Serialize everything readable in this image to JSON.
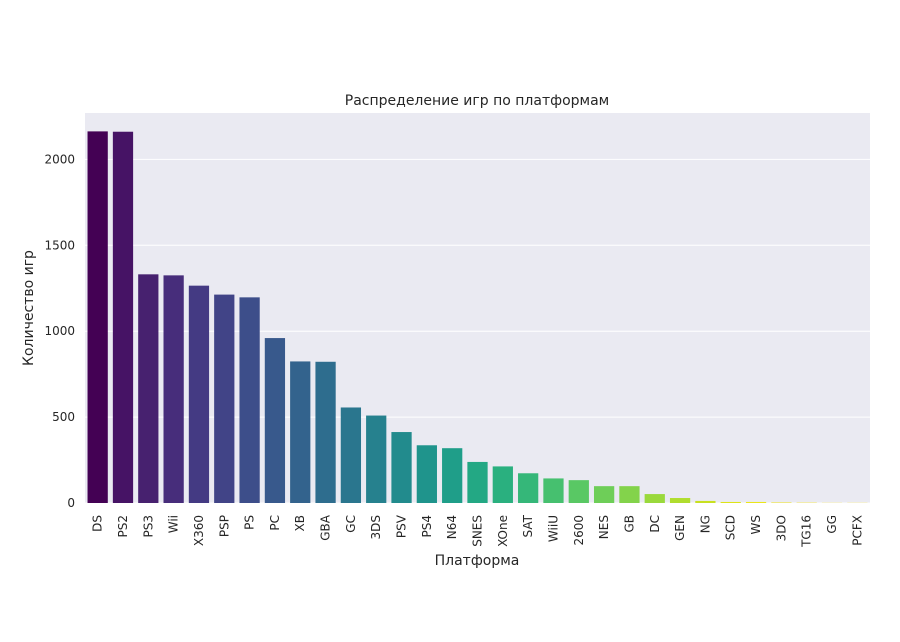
{
  "chart_data": {
    "type": "bar",
    "title": "Распределение игр по платформам",
    "xlabel": "Платформа",
    "ylabel": "Количество игр",
    "categories": [
      "DS",
      "PS2",
      "PS3",
      "Wii",
      "X360",
      "PSP",
      "PS",
      "PC",
      "XB",
      "GBA",
      "GC",
      "3DS",
      "PSV",
      "PS4",
      "N64",
      "SNES",
      "XOne",
      "SAT",
      "WiiU",
      "2600",
      "NES",
      "GB",
      "DC",
      "GEN",
      "NG",
      "SCD",
      "WS",
      "3DO",
      "TG16",
      "GG",
      "PCFX"
    ],
    "values": [
      2163,
      2161,
      1331,
      1325,
      1265,
      1213,
      1197,
      960,
      824,
      822,
      556,
      509,
      413,
      336,
      319,
      239,
      213,
      173,
      143,
      133,
      98,
      98,
      52,
      29,
      12,
      6,
      6,
      3,
      2,
      1,
      1
    ],
    "ylim": [
      0,
      2270
    ],
    "yticks": [
      0,
      500,
      1000,
      1500,
      2000
    ],
    "grid": true,
    "colors": [
      "#440154",
      "#461365",
      "#47216f",
      "#472d7b",
      "#443a83",
      "#414487",
      "#3d4e8a",
      "#38598c",
      "#33638d",
      "#2e6d8e",
      "#2a768e",
      "#26818e",
      "#228b8d",
      "#1f948c",
      "#1f9e89",
      "#23a884",
      "#2ab07f",
      "#35b779",
      "#46c06f",
      "#59c864",
      "#6ece58",
      "#83d34b",
      "#9ad93c",
      "#b0dd2f",
      "#c8e020",
      "#dde318",
      "#eae51a",
      "#f2e61d",
      "#f7e621",
      "#fbe723",
      "#fde725"
    ]
  }
}
